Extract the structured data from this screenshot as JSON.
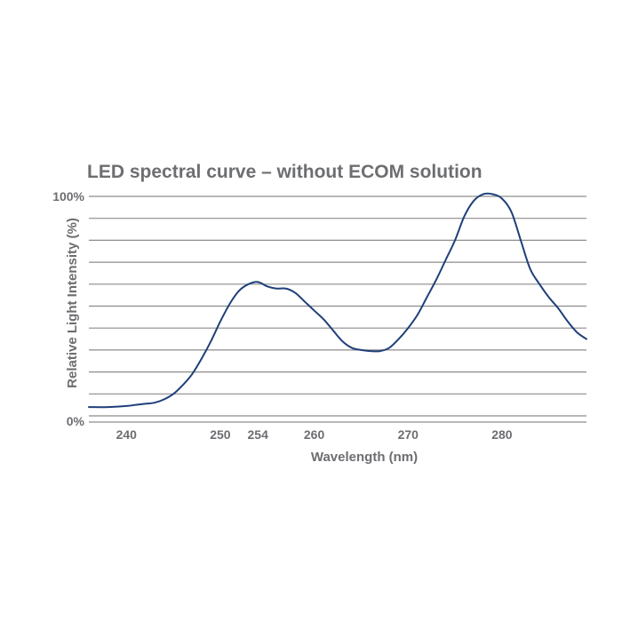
{
  "chart_data": {
    "type": "line",
    "title": "LED spectral curve – without ECOM solution",
    "xlabel": "Wavelength (nm)",
    "ylabel": "Relative Light Intensity (%)",
    "xlim": [
      236,
      289
    ],
    "ylim": [
      0,
      100
    ],
    "x_ticks": [
      {
        "value": 240,
        "label": "240"
      },
      {
        "value": 250,
        "label": "250"
      },
      {
        "value": 254,
        "label": "254"
      },
      {
        "value": 260,
        "label": "260"
      },
      {
        "value": 270,
        "label": "270"
      },
      {
        "value": 280,
        "label": "280"
      }
    ],
    "y_ticks": [
      {
        "value": 0,
        "label": "0%"
      },
      {
        "value": 100,
        "label": "100%"
      }
    ],
    "gridlines": [
      0,
      10,
      20,
      30,
      40,
      50,
      60,
      70,
      80,
      90,
      100
    ],
    "grid": true,
    "line_color": "#1f3f7a",
    "grid_color": "#8c8c8c",
    "text_color": "#6d6e71",
    "series": [
      {
        "x": [
          236,
          238,
          240,
          241,
          242,
          243,
          244,
          245,
          246,
          247,
          248,
          249,
          250,
          251,
          252,
          253,
          254,
          255,
          256,
          257,
          258,
          259,
          260,
          261,
          262,
          263,
          264,
          265,
          266,
          267,
          268,
          269,
          270,
          271,
          272,
          273,
          274,
          275,
          276,
          277,
          278,
          279,
          280,
          281,
          282,
          283,
          284,
          285,
          286,
          287,
          288,
          289
        ],
        "y": [
          4,
          4,
          4.5,
          5,
          5.5,
          6,
          7.5,
          10,
          14,
          19,
          26,
          34,
          43,
          51,
          57,
          60,
          61,
          59,
          58,
          58,
          56,
          52,
          48,
          44,
          39,
          34,
          31,
          30,
          29.5,
          29.5,
          31,
          35,
          40,
          46,
          54,
          62,
          71,
          80,
          91,
          98,
          101,
          101,
          99,
          93,
          80,
          67,
          60,
          54,
          49,
          43,
          38,
          35
        ]
      }
    ]
  }
}
